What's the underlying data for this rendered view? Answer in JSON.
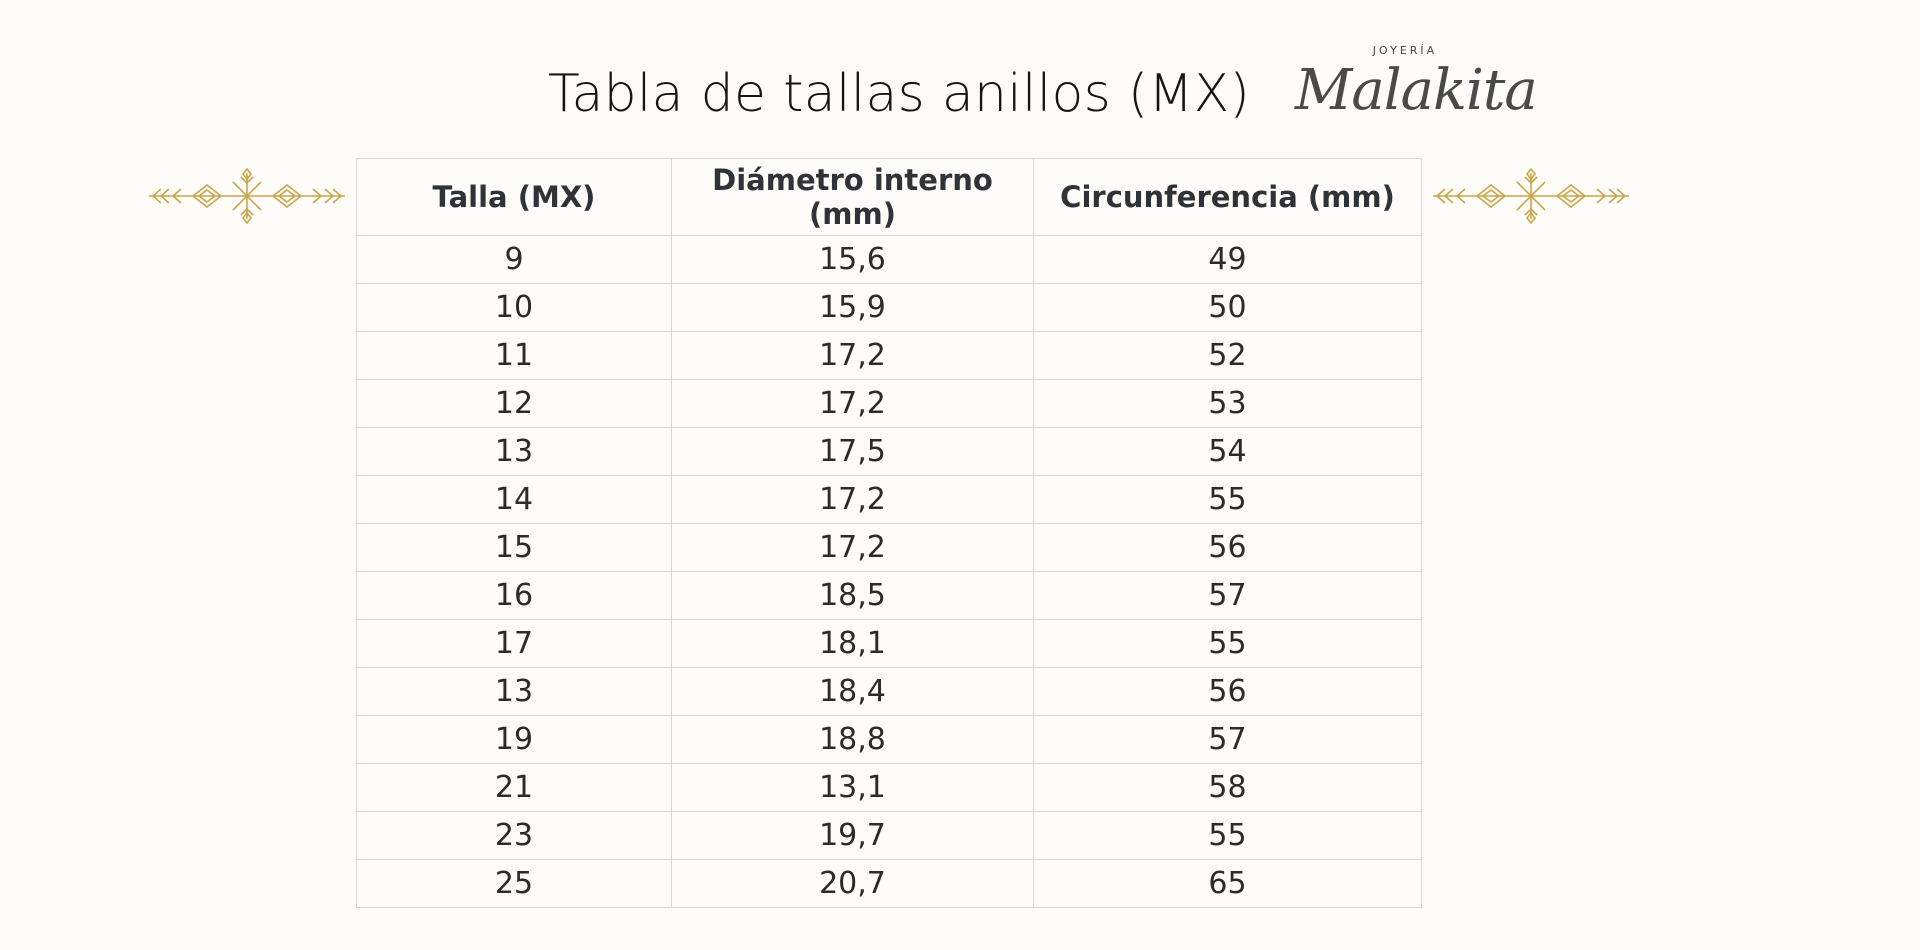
{
  "page": {
    "title": "Tabla de tallas anillos (MX)",
    "background": "#fdfcf9",
    "accent_gold": "#c9a54c"
  },
  "brand": {
    "subtitle": "JOYERÍA",
    "name": "Malakita"
  },
  "ornaments": [
    "gold-snowflake-ornament-icon",
    "gold-snowflake-ornament-icon"
  ],
  "table": {
    "headers": [
      "Talla (MX)",
      "Diámetro interno (mm)",
      "Circunferencia (mm)"
    ],
    "rows": [
      [
        "9",
        "15,6",
        "49"
      ],
      [
        "10",
        "15,9",
        "50"
      ],
      [
        "11",
        "17,2",
        "52"
      ],
      [
        "12",
        "17,2",
        "53"
      ],
      [
        "13",
        "17,5",
        "54"
      ],
      [
        "14",
        "17,2",
        "55"
      ],
      [
        "15",
        "17,2",
        "56"
      ],
      [
        "16",
        "18,5",
        "57"
      ],
      [
        "17",
        "18,1",
        "55"
      ],
      [
        "13",
        "18,4",
        "56"
      ],
      [
        "19",
        "18,8",
        "57"
      ],
      [
        "21",
        "13,1",
        "58"
      ],
      [
        "23",
        "19,7",
        "55"
      ],
      [
        "25",
        "20,7",
        "65"
      ]
    ]
  }
}
